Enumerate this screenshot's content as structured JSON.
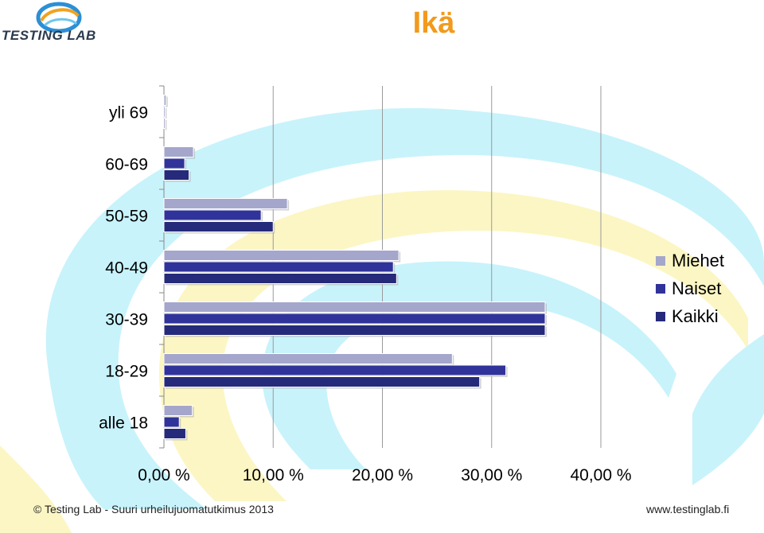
{
  "header": {
    "logo_text": "TESTING LAB",
    "title": "Ikä"
  },
  "footer": {
    "left": "© Testing Lab -  Suuri urheilujuomatutkimus 2013",
    "right": "www.testinglab.fi"
  },
  "colors": {
    "title": "#f29a1c",
    "swirl_cyan": "#c8f3fb",
    "swirl_yellow": "#fcf6c4",
    "logo_blue": "#2b8fd6",
    "logo_orange": "#f2a21e"
  },
  "chart_data": {
    "type": "bar",
    "orientation": "horizontal",
    "categories": [
      "alle 18",
      "18-29",
      "30-39",
      "40-49",
      "50-59",
      "60-69",
      "yli 69"
    ],
    "series": [
      {
        "name": "Miehet",
        "color": "#a4a6cc",
        "values": [
          2.6,
          26.4,
          34.9,
          21.5,
          11.3,
          2.7,
          0.2
        ]
      },
      {
        "name": "Naiset",
        "color": "#303399",
        "values": [
          1.4,
          31.3,
          34.9,
          21.0,
          8.9,
          1.9,
          0.1
        ]
      },
      {
        "name": "Kaikki",
        "color": "#262a7a",
        "values": [
          2.0,
          28.9,
          34.9,
          21.3,
          10.0,
          2.3,
          0.1
        ]
      }
    ],
    "xlim": [
      0,
      40
    ],
    "xticks": [
      "0,00 %",
      "10,00 %",
      "20,00 %",
      "30,00 %",
      "40,00 %"
    ],
    "xtick_values": [
      0,
      10,
      20,
      30,
      40
    ],
    "grid": "vertical",
    "legend_position": "right"
  }
}
